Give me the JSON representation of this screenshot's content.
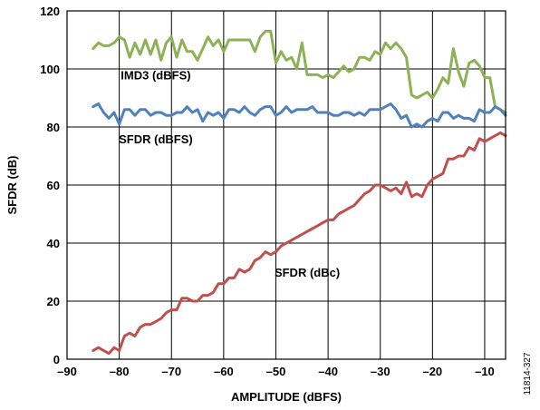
{
  "chart_data": {
    "type": "line",
    "xlabel": "AMPLITUDE (dBFS)",
    "ylabel": "SFDR (dB)",
    "xlim": [
      -90,
      -6
    ],
    "ylim": [
      0,
      120
    ],
    "xticks": [
      -90,
      -80,
      -70,
      -60,
      -50,
      -40,
      -30,
      -20,
      -10
    ],
    "xtick_labels": [
      "–90",
      "–80",
      "–70",
      "–60",
      "–50",
      "–40",
      "–30",
      "–20",
      "–10"
    ],
    "yticks": [
      0,
      20,
      40,
      60,
      80,
      100,
      120
    ],
    "ytick_labels": [
      "0",
      "20",
      "40",
      "60",
      "80",
      "100",
      "120"
    ],
    "grid": true,
    "figure_id": "11814-327",
    "series": [
      {
        "name": "IMD3 (dBFS)",
        "color": "#8DB255",
        "x": [
          -85,
          -84,
          -83,
          -82,
          -81,
          -80,
          -79,
          -78,
          -77,
          -76,
          -75,
          -74,
          -73,
          -72,
          -71,
          -70,
          -69,
          -68,
          -67,
          -66,
          -65,
          -64,
          -63,
          -62,
          -61,
          -60,
          -59,
          -58,
          -57,
          -56,
          -55,
          -54,
          -53,
          -52,
          -51,
          -50,
          -49,
          -48,
          -47,
          -46,
          -45,
          -44,
          -43,
          -42,
          -41,
          -40,
          -39,
          -38,
          -37,
          -36,
          -35,
          -34,
          -33,
          -32,
          -31,
          -30,
          -29,
          -28,
          -27,
          -26,
          -25,
          -24,
          -23,
          -22,
          -21,
          -20,
          -19,
          -18,
          -17,
          -16,
          -15,
          -14,
          -13,
          -12,
          -11,
          -10,
          -9,
          -8,
          -7,
          -6
        ],
        "values": [
          107,
          109,
          108,
          108,
          109,
          111,
          110,
          104,
          109,
          105,
          110,
          105,
          110,
          103,
          109,
          111,
          104,
          110,
          106,
          106,
          103,
          107,
          111,
          108,
          110,
          106,
          110,
          110,
          110,
          110,
          110,
          106,
          111,
          113,
          113,
          102,
          106,
          103,
          104,
          100,
          109,
          98,
          98,
          98,
          97,
          98,
          97,
          99,
          101,
          99,
          100,
          104,
          104,
          103,
          106,
          105,
          109,
          107,
          109,
          107,
          104,
          91,
          90,
          91,
          92,
          90,
          93,
          97,
          95,
          107,
          99,
          94,
          102,
          103,
          101,
          97,
          97,
          87,
          86,
          85
        ]
      },
      {
        "name": "SFDR (dBFS)",
        "color": "#4F81BD",
        "x": [
          -85,
          -84,
          -83,
          -82,
          -81,
          -80,
          -79,
          -78,
          -77,
          -76,
          -75,
          -74,
          -73,
          -72,
          -71,
          -70,
          -69,
          -68,
          -67,
          -66,
          -65,
          -64,
          -63,
          -62,
          -61,
          -60,
          -59,
          -58,
          -57,
          -56,
          -55,
          -54,
          -53,
          -52,
          -51,
          -50,
          -49,
          -48,
          -47,
          -46,
          -45,
          -44,
          -43,
          -42,
          -41,
          -40,
          -39,
          -38,
          -37,
          -36,
          -35,
          -34,
          -33,
          -32,
          -31,
          -30,
          -29,
          -28,
          -27,
          -26,
          -25,
          -24,
          -23,
          -22,
          -21,
          -20,
          -19,
          -18,
          -17,
          -16,
          -15,
          -14,
          -13,
          -12,
          -11,
          -10,
          -9,
          -8,
          -7,
          -6
        ],
        "values": [
          87,
          88,
          85,
          83,
          85,
          81,
          86,
          86,
          84,
          86,
          86,
          84,
          85,
          85,
          84,
          84,
          85,
          85,
          87,
          85,
          86,
          82,
          85,
          84,
          85,
          83,
          86,
          86,
          85,
          87,
          85,
          84,
          86,
          87,
          87,
          84,
          85,
          87,
          85,
          86,
          86,
          86,
          87,
          85,
          85,
          85,
          84,
          84,
          85,
          85,
          84,
          85,
          84,
          86,
          86,
          86,
          87,
          88,
          86,
          83,
          84,
          80,
          81,
          80,
          82,
          83,
          82,
          85,
          85,
          83,
          84,
          83,
          83,
          82,
          86,
          85,
          85,
          87,
          86,
          84
        ]
      },
      {
        "name": "SFDR (dBc)",
        "color": "#C0504D",
        "x": [
          -85,
          -84,
          -83,
          -82,
          -81,
          -80,
          -79,
          -78,
          -77,
          -76,
          -75,
          -74,
          -73,
          -72,
          -71,
          -70,
          -69,
          -68,
          -67,
          -66,
          -65,
          -64,
          -63,
          -62,
          -61,
          -60,
          -59,
          -58,
          -57,
          -56,
          -55,
          -54,
          -53,
          -52,
          -51,
          -50,
          -49,
          -48,
          -47,
          -46,
          -45,
          -44,
          -43,
          -42,
          -41,
          -40,
          -39,
          -38,
          -37,
          -36,
          -35,
          -34,
          -33,
          -32,
          -31,
          -30,
          -29,
          -28,
          -27,
          -26,
          -25,
          -24,
          -23,
          -22,
          -21,
          -20,
          -19,
          -18,
          -17,
          -16,
          -15,
          -14,
          -13,
          -12,
          -11,
          -10,
          -9,
          -8,
          -7,
          -6
        ],
        "values": [
          3,
          4,
          3,
          2,
          4,
          3,
          8,
          9,
          8,
          11,
          12,
          12,
          13,
          14,
          16,
          17,
          17,
          21,
          21,
          20,
          20,
          22,
          22,
          23,
          26,
          26,
          28,
          28,
          31,
          30,
          31,
          34,
          35,
          37,
          36,
          37,
          39,
          40,
          41,
          42,
          43,
          44,
          45,
          46,
          47,
          48,
          48,
          50,
          51,
          52,
          53,
          55,
          57,
          58,
          60,
          60,
          59,
          58,
          59,
          57,
          61,
          56,
          57,
          56,
          60,
          62,
          63,
          64,
          69,
          69,
          70,
          70,
          73,
          72,
          76,
          75,
          76,
          77,
          78,
          77
        ]
      }
    ],
    "annotations": [
      {
        "text": "IMD3 (dBFS)",
        "x": -73,
        "y": 98
      },
      {
        "text": "SFDR (dBFS)",
        "x": -73,
        "y": 76
      },
      {
        "text": "SFDR (dBc)",
        "x": -44,
        "y": 30
      }
    ]
  }
}
